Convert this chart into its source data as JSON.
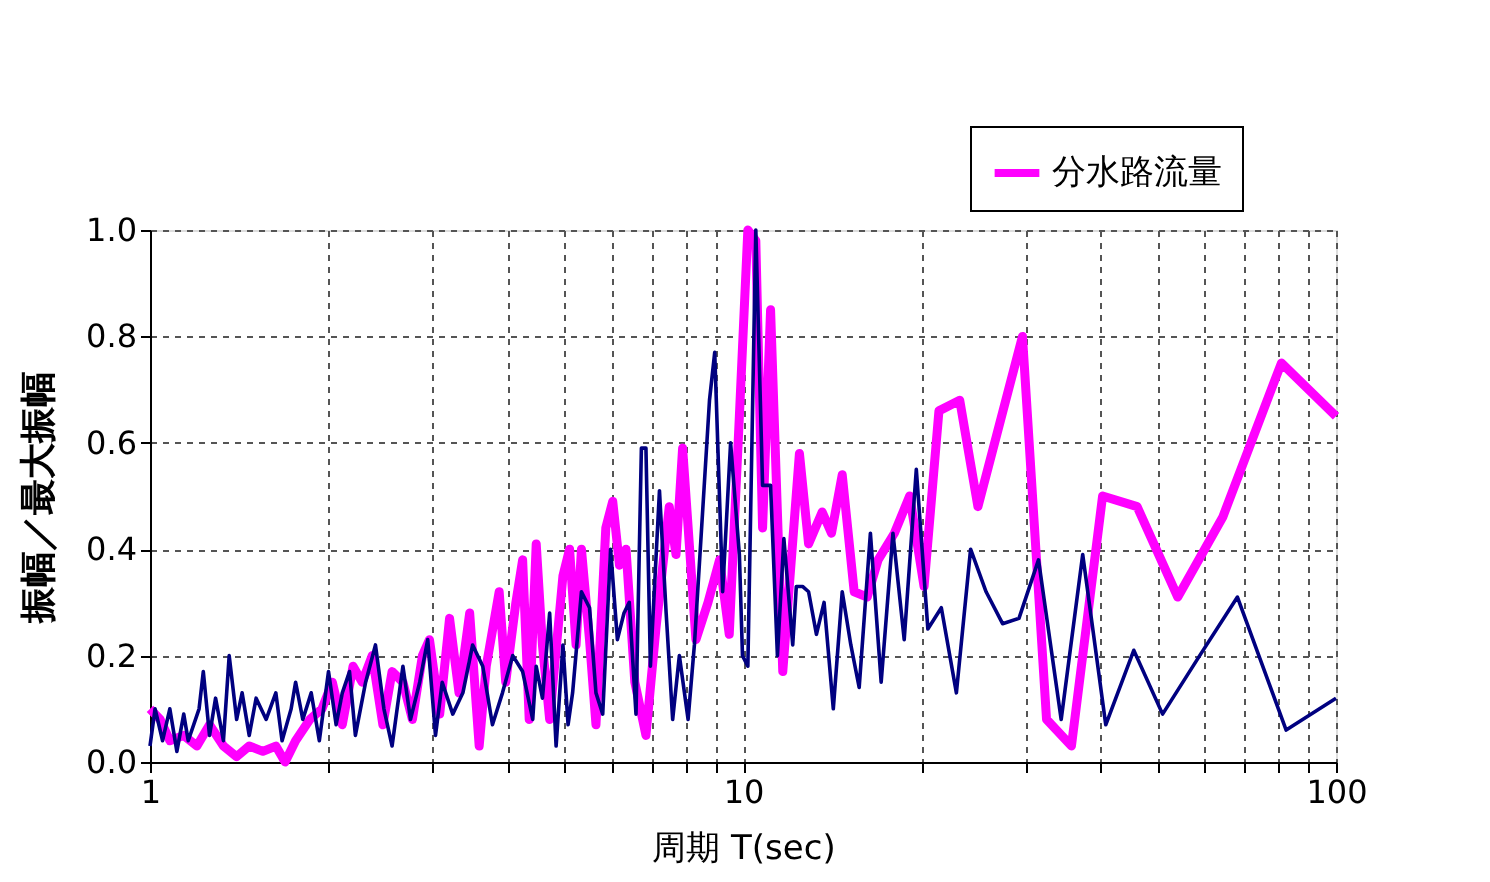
{
  "chart_data": {
    "type": "line",
    "xlabel": "周期 T(sec)",
    "ylabel": "振幅／最大振幅",
    "log": "x",
    "grid": true,
    "legend": "top right",
    "xlim": [
      1,
      100
    ],
    "ylim": [
      0,
      1.0
    ],
    "xticks": [
      1,
      {
        "value": 2,
        "label": null
      },
      {
        "value": 3,
        "label": null
      },
      {
        "value": 4,
        "label": null
      },
      {
        "value": 5,
        "label": null
      },
      {
        "value": 6,
        "label": null
      },
      {
        "value": 7,
        "label": null
      },
      {
        "value": 8,
        "label": null
      },
      {
        "value": 9,
        "label": null
      },
      10,
      {
        "value": 20,
        "label": null
      },
      {
        "value": 30,
        "label": null
      },
      {
        "value": 40,
        "label": null
      },
      {
        "value": 50,
        "label": null
      },
      {
        "value": 60,
        "label": null
      },
      {
        "value": 70,
        "label": null
      },
      {
        "value": 80,
        "label": null
      },
      {
        "value": 90,
        "label": null
      },
      100
    ],
    "yticks": [
      {
        "value": 0,
        "label": "0.0"
      },
      {
        "value": 0.2,
        "label": "0.2"
      },
      {
        "value": 0.4,
        "label": "0.4"
      },
      {
        "value": 0.6,
        "label": "0.6"
      },
      {
        "value": 0.8,
        "label": "0.8"
      },
      {
        "value": 1.0,
        "label": "1.0"
      }
    ],
    "series": [
      {
        "name": "分水路流量",
        "color": "#ff00ff",
        "x": [
          1.0,
          1.04,
          1.08,
          1.14,
          1.2,
          1.26,
          1.33,
          1.4,
          1.47,
          1.55,
          1.63,
          1.69,
          1.76,
          1.86,
          1.95,
          2.03,
          2.11,
          2.2,
          2.28,
          2.37,
          2.47,
          2.56,
          2.67,
          2.77,
          2.88,
          2.96,
          3.08,
          3.2,
          3.32,
          3.46,
          3.59,
          3.69,
          3.88,
          3.98,
          4.14,
          4.25,
          4.36,
          4.48,
          4.59,
          4.72,
          4.97,
          5.1,
          5.23,
          5.34,
          5.51,
          5.65,
          5.87,
          6.03,
          6.19,
          6.35,
          6.57,
          6.86,
          7.13,
          7.51,
          7.71,
          7.91,
          8.33,
          8.73,
          9.13,
          9.48,
          9.86,
          10.19,
          10.51,
          10.79,
          11.13,
          11.67,
          12.45,
          12.9,
          13.6,
          14.1,
          14.7,
          15.4,
          16.2,
          16.9,
          18.0,
          19.1,
          20.2,
          21.4,
          23.2,
          24.9,
          29.6,
          32.5,
          35.8,
          40.4,
          46.2,
          54.1,
          64.4,
          80.9,
          100
        ],
        "values": [
          0.1,
          0.08,
          0.04,
          0.05,
          0.03,
          0.07,
          0.03,
          0.01,
          0.03,
          0.02,
          0.03,
          0.0,
          0.04,
          0.08,
          0.1,
          0.15,
          0.07,
          0.18,
          0.15,
          0.2,
          0.07,
          0.17,
          0.15,
          0.08,
          0.2,
          0.23,
          0.09,
          0.27,
          0.13,
          0.28,
          0.03,
          0.18,
          0.32,
          0.15,
          0.3,
          0.38,
          0.08,
          0.41,
          0.22,
          0.08,
          0.35,
          0.4,
          0.22,
          0.4,
          0.23,
          0.07,
          0.44,
          0.49,
          0.37,
          0.4,
          0.15,
          0.05,
          0.25,
          0.48,
          0.39,
          0.59,
          0.23,
          0.3,
          0.38,
          0.24,
          0.65,
          1.0,
          0.98,
          0.44,
          0.85,
          0.17,
          0.58,
          0.41,
          0.47,
          0.43,
          0.54,
          0.32,
          0.31,
          0.38,
          0.43,
          0.5,
          0.33,
          0.66,
          0.68,
          0.48,
          0.8,
          0.08,
          0.03,
          0.5,
          0.48,
          0.31,
          0.46,
          0.75,
          0.65
        ]
      },
      {
        "color": "#000080",
        "x": [
          1.0,
          1.02,
          1.05,
          1.08,
          1.11,
          1.14,
          1.16,
          1.21,
          1.23,
          1.26,
          1.29,
          1.33,
          1.36,
          1.4,
          1.43,
          1.47,
          1.51,
          1.57,
          1.63,
          1.67,
          1.73,
          1.76,
          1.81,
          1.87,
          1.93,
          2.0,
          2.06,
          2.11,
          2.17,
          2.22,
          2.31,
          2.4,
          2.48,
          2.56,
          2.67,
          2.75,
          2.85,
          2.94,
          3.03,
          3.11,
          3.24,
          3.37,
          3.5,
          3.64,
          3.78,
          3.93,
          4.09,
          4.25,
          4.42,
          4.48,
          4.59,
          4.72,
          4.84,
          4.97,
          5.07,
          5.16,
          5.34,
          5.51,
          5.65,
          5.8,
          5.98,
          6.14,
          6.3,
          6.43,
          6.6,
          6.74,
          6.86,
          6.98,
          7.23,
          7.42,
          7.61,
          7.81,
          8.08,
          8.28,
          8.78,
          8.96,
          9.24,
          9.53,
          9.86,
          9.98,
          10.19,
          10.51,
          10.79,
          11.13,
          11.43,
          11.72,
          12.13,
          12.3,
          12.6,
          12.9,
          13.3,
          13.7,
          14.2,
          14.7,
          15.2,
          15.7,
          16.4,
          17.1,
          17.9,
          18.7,
          19.6,
          20.5,
          21.6,
          22.9,
          24.2,
          25.7,
          27.4,
          29.2,
          31.5,
          34.4,
          37.4,
          40.9,
          45.6,
          51.0,
          58.9,
          68.2,
          82.4,
          100
        ],
        "values": [
          0.03,
          0.1,
          0.04,
          0.1,
          0.02,
          0.09,
          0.04,
          0.1,
          0.17,
          0.05,
          0.12,
          0.04,
          0.2,
          0.08,
          0.13,
          0.05,
          0.12,
          0.08,
          0.13,
          0.04,
          0.1,
          0.15,
          0.08,
          0.13,
          0.04,
          0.17,
          0.07,
          0.13,
          0.17,
          0.05,
          0.15,
          0.22,
          0.1,
          0.03,
          0.18,
          0.08,
          0.15,
          0.23,
          0.05,
          0.15,
          0.09,
          0.13,
          0.22,
          0.18,
          0.07,
          0.13,
          0.2,
          0.17,
          0.08,
          0.18,
          0.12,
          0.28,
          0.03,
          0.22,
          0.07,
          0.13,
          0.32,
          0.29,
          0.13,
          0.09,
          0.4,
          0.23,
          0.28,
          0.3,
          0.09,
          0.59,
          0.59,
          0.18,
          0.51,
          0.28,
          0.08,
          0.2,
          0.08,
          0.22,
          0.68,
          0.77,
          0.32,
          0.6,
          0.39,
          0.2,
          0.18,
          1.0,
          0.52,
          0.52,
          0.2,
          0.42,
          0.22,
          0.33,
          0.33,
          0.32,
          0.24,
          0.3,
          0.1,
          0.32,
          0.22,
          0.14,
          0.43,
          0.15,
          0.43,
          0.23,
          0.55,
          0.25,
          0.29,
          0.13,
          0.4,
          0.32,
          0.26,
          0.27,
          0.38,
          0.08,
          0.39,
          0.07,
          0.21,
          0.09,
          0.2,
          0.31,
          0.06,
          0.12
        ]
      }
    ]
  }
}
